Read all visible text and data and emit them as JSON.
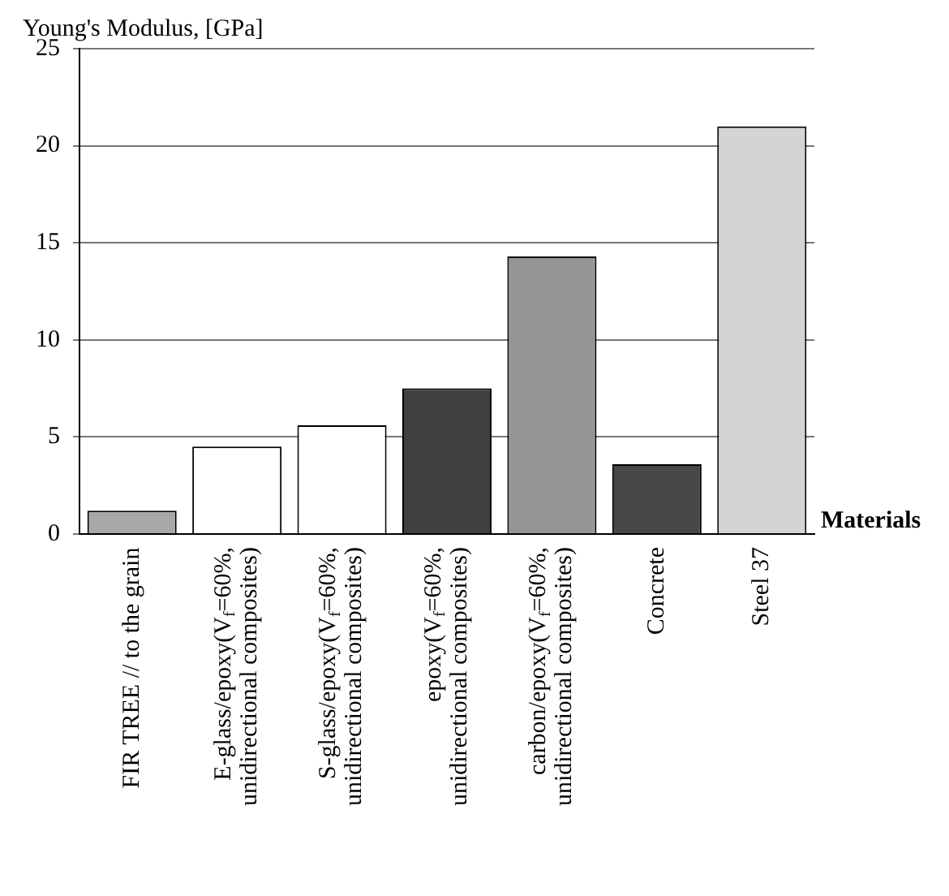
{
  "chart_data": {
    "type": "bar",
    "ylabel": "Young's Modulus, [GPa]",
    "xlabel": "Materials",
    "categories": [
      "FIR TREE // to the grain",
      "E-glass/epoxy(V$_{f}$=60%, unidirectional composites)",
      "S-glass/epoxy(V$_{f}$=60%, unidirectional composites)",
      "epoxy(V$_{f}$=60%, unidirectional composites)",
      "carbon/epoxy(V$_{f}$=60%, unidirectional composites)",
      "Concrete",
      "Steel 37"
    ],
    "values": [
      1.2,
      4.5,
      5.6,
      7.5,
      14.3,
      3.6,
      21
    ],
    "colors": [
      "#a8a8a8",
      "#ffffff",
      "#ffffff",
      "#404040",
      "#959595",
      "#484848",
      "#d4d4d4"
    ],
    "ylim": [
      0,
      25
    ],
    "yticks": [
      0,
      5,
      10,
      15,
      20,
      25
    ],
    "grid": "y",
    "legend": false
  }
}
